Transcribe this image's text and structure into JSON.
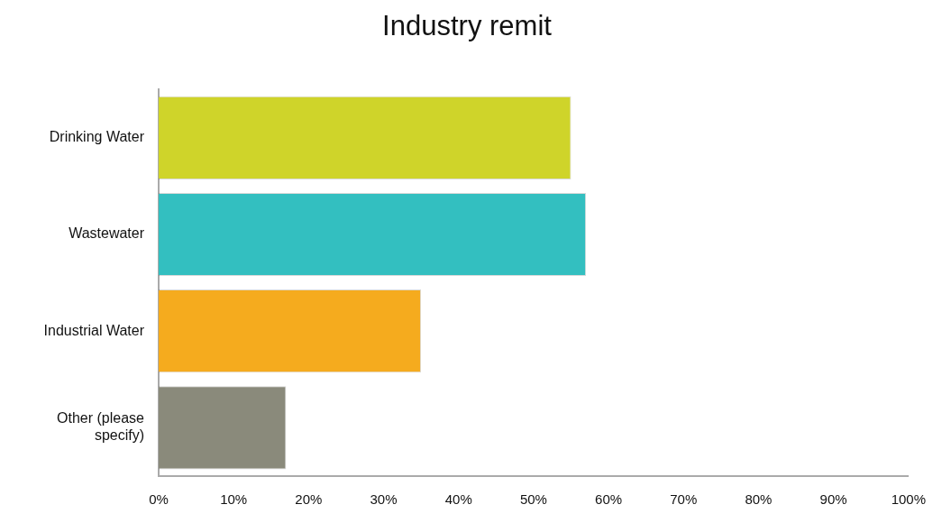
{
  "chart_data": {
    "type": "bar",
    "title": "Industry remit",
    "orientation": "horizontal",
    "categories": [
      "Drinking Water",
      "Wastewater",
      "Industrial Water",
      "Other (please specify)"
    ],
    "values": [
      55,
      57,
      35,
      17
    ],
    "colors": [
      "#cfd42a",
      "#33bfc0",
      "#f5ab1e",
      "#8a8a7b"
    ],
    "xlim": [
      0,
      100
    ],
    "xticks": [
      {
        "value": 0,
        "label": "0%"
      },
      {
        "value": 10,
        "label": "10%"
      },
      {
        "value": 20,
        "label": "20%"
      },
      {
        "value": 30,
        "label": "30%"
      },
      {
        "value": 40,
        "label": "40%"
      },
      {
        "value": 50,
        "label": "50%"
      },
      {
        "value": 60,
        "label": "60%"
      },
      {
        "value": 70,
        "label": "70%"
      },
      {
        "value": 80,
        "label": "80%"
      },
      {
        "value": 90,
        "label": "90%"
      },
      {
        "value": 100,
        "label": "100%"
      }
    ],
    "grid": false,
    "legend": false
  }
}
